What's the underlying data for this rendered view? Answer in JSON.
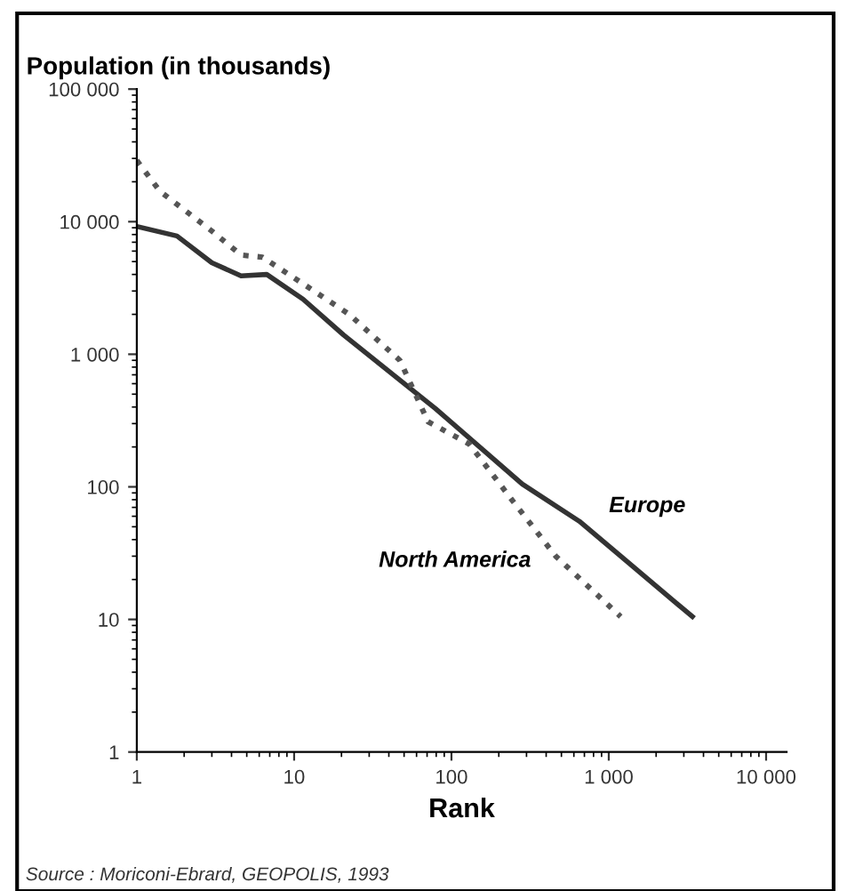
{
  "chart_data": {
    "type": "line",
    "title": "Population (in thousands)",
    "xlabel": "Rank",
    "log": "xy",
    "grid": false,
    "legend": false,
    "xlim": [
      1,
      13500
    ],
    "ylim": [
      1,
      100000
    ],
    "xticks": [
      1,
      10,
      100,
      {
        "value": 1000,
        "label": "1 000"
      },
      {
        "value": 10000,
        "label": "10 000"
      }
    ],
    "yticks": [
      1,
      10,
      100,
      {
        "value": 1000,
        "label": "1 000"
      },
      {
        "value": 10000,
        "label": "10 000"
      },
      {
        "value": 100000,
        "label": "100 000"
      }
    ],
    "series": [
      {
        "name": "Europe",
        "color": "#333333",
        "line_style": "solid",
        "x": [
          1,
          1.8,
          3,
          4.6,
          6.7,
          11.4,
          20.6,
          44,
          79,
          282,
          650,
          1190,
          3400
        ],
        "values": [
          9200,
          7800,
          4900,
          3900,
          4000,
          2600,
          1400,
          680,
          390,
          105,
          55,
          30,
          10.5
        ]
      },
      {
        "name": "North America",
        "color": "#555555",
        "line_style": "dotted",
        "x": [
          1,
          1.4,
          3,
          4.6,
          6.3,
          11.4,
          22.4,
          47,
          71,
          130,
          250,
          460,
          1190
        ],
        "values": [
          29000,
          17000,
          8500,
          5600,
          5400,
          3400,
          2000,
          900,
          310,
          210,
          76,
          30,
          10.5
        ]
      }
    ],
    "annotations": [
      "Source : Moriconi-Ebrard, GEOPOLIS, 1993"
    ]
  }
}
